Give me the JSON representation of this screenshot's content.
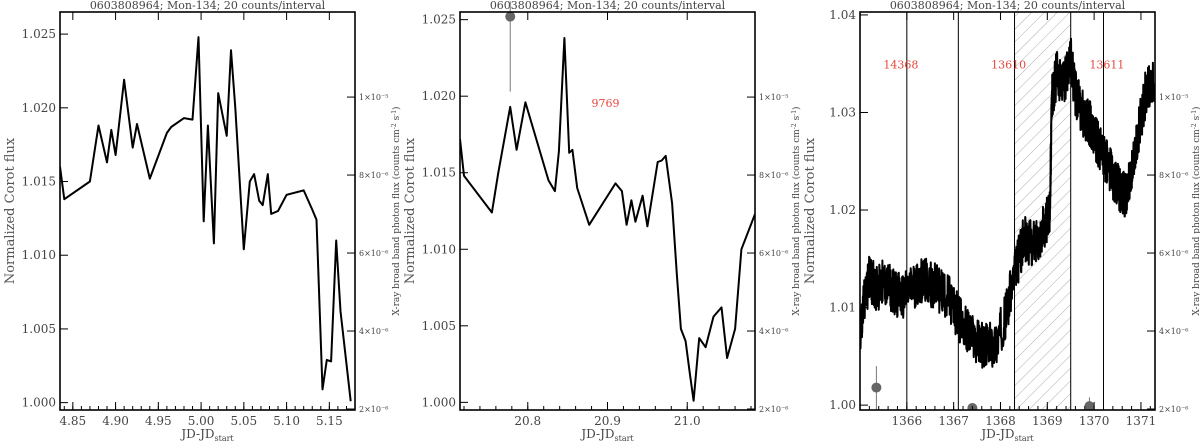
{
  "chart_data": [
    {
      "type": "line",
      "title": "0603808964; Mon-134; 20 counts/interval",
      "xlabel": "JD-JD",
      "xlabel_sub": "start",
      "ylabel": "Normalized Corot flux",
      "ylabel_right": "X-ray broad band photon flux (counts cm",
      "ylabel_right_parts": [
        "-2",
        " s",
        "-1",
        ")"
      ],
      "xlim": [
        4.835,
        5.18
      ],
      "ylim": [
        0.9995,
        1.0265
      ],
      "xticks": [
        "4.85",
        "4.90",
        "4.95",
        "5.00",
        "5.05",
        "5.10",
        "5.15"
      ],
      "xtick_values": [
        4.85,
        4.9,
        4.95,
        5.0,
        5.05,
        5.1,
        5.15
      ],
      "yticks": [
        "1.000",
        "1.005",
        "1.010",
        "1.015",
        "1.020",
        "1.025"
      ],
      "ytick_values": [
        1.0,
        1.005,
        1.01,
        1.015,
        1.02,
        1.025
      ],
      "yticks_right": [
        "2×10⁻⁶",
        "4×10⁻⁶",
        "6×10⁻⁶",
        "8×10⁻⁶",
        "1×10⁻⁵"
      ],
      "ytick_right_frac": [
        0.0,
        0.202,
        0.404,
        0.606,
        0.808
      ],
      "series": [
        {
          "x": [
            4.835,
            4.84,
            4.87,
            4.88,
            4.89,
            4.895,
            4.9,
            4.91,
            4.92,
            4.925,
            4.94,
            4.96,
            4.965,
            4.98,
            4.99,
            4.997,
            5.003,
            5.008,
            5.015,
            5.02,
            5.03,
            5.035,
            5.04,
            5.05,
            5.057,
            5.062,
            5.068,
            5.072,
            5.078,
            5.082,
            5.09,
            5.1,
            5.12,
            5.13,
            5.135,
            5.142,
            5.147,
            5.152,
            5.158,
            5.163,
            5.175
          ],
          "y": [
            1.016,
            1.0138,
            1.015,
            1.0188,
            1.0163,
            1.0185,
            1.0168,
            1.0219,
            1.0173,
            1.0189,
            1.0152,
            1.0183,
            1.0187,
            1.0193,
            1.0192,
            1.0248,
            1.0123,
            1.0188,
            1.0108,
            1.021,
            1.0181,
            1.0239,
            1.02,
            1.0104,
            1.015,
            1.0155,
            1.0137,
            1.0134,
            1.0155,
            1.0128,
            1.013,
            1.0141,
            1.0144,
            1.0131,
            1.0124,
            1.0009,
            1.0029,
            1.0028,
            1.011,
            1.0062,
            1.0001
          ]
        }
      ],
      "xray_points": [],
      "regions": [],
      "vlines": []
    },
    {
      "type": "line",
      "title": "0603808964; Mon-134; 20 counts/interval",
      "xlabel": "JD-JD",
      "xlabel_sub": "start",
      "ylabel": "Normalized Corot flux",
      "ylabel_right": "X-ray broad band photon flux (counts cm",
      "ylabel_right_parts": [
        "-2",
        " s",
        "-1",
        ")"
      ],
      "xlim": [
        20.715,
        21.085
      ],
      "ylim": [
        0.9995,
        1.0255
      ],
      "xticks": [
        "20.8",
        "20.9",
        "21.0"
      ],
      "xtick_values": [
        20.8,
        20.9,
        21.0
      ],
      "yticks": [
        "1.000",
        "1.005",
        "1.010",
        "1.015",
        "1.020",
        "1.025"
      ],
      "ytick_values": [
        1.0,
        1.005,
        1.01,
        1.015,
        1.02,
        1.025
      ],
      "yticks_right": [
        "2×10⁻⁶",
        "4×10⁻⁶",
        "6×10⁻⁶",
        "8×10⁻⁶",
        "1×10⁻⁵"
      ],
      "ytick_right_frac": [
        0.0,
        0.202,
        0.404,
        0.606,
        0.808
      ],
      "series": [
        {
          "x": [
            20.715,
            20.72,
            20.755,
            20.763,
            20.778,
            20.786,
            20.797,
            20.826,
            20.834,
            20.839,
            20.846,
            20.852,
            20.856,
            20.862,
            20.877,
            20.91,
            20.918,
            20.924,
            20.93,
            20.935,
            20.944,
            20.95,
            20.963,
            20.968,
            20.973,
            20.981,
            20.987,
            20.992,
            20.998,
            21.003,
            21.008,
            21.015,
            21.023,
            21.033,
            21.043,
            21.05,
            21.06,
            21.068,
            21.085
          ],
          "y": [
            1.0172,
            1.0148,
            1.0124,
            1.015,
            1.0193,
            1.0165,
            1.0196,
            1.0145,
            1.0138,
            1.0164,
            1.0238,
            1.0163,
            1.0165,
            1.014,
            1.0116,
            1.0143,
            1.0138,
            1.0116,
            1.0132,
            1.0118,
            1.0135,
            1.0115,
            1.0157,
            1.0158,
            1.0161,
            1.013,
            1.0083,
            1.0048,
            1.004,
            1.002,
            1.0001,
            1.0042,
            1.0036,
            1.0056,
            1.0062,
            1.0029,
            1.0048,
            1.01,
            1.0123
          ]
        }
      ],
      "xray_points": [
        {
          "x": 20.778,
          "y": 1.0252,
          "err_low": 1.0203,
          "err_high": 1.0262
        }
      ],
      "regions": [
        {
          "label": "9769",
          "x": 20.88,
          "y": 1.0193,
          "hatched": false
        }
      ],
      "vlines": []
    },
    {
      "type": "line",
      "title": "0603808964; Mon-134; 20 counts/interval",
      "xlabel": "JD-JD",
      "xlabel_sub": "start",
      "ylabel": "Normalized Corot flux",
      "ylabel_right": "X-ray broad band photon flux (counts cm",
      "ylabel_right_parts": [
        "-2",
        " s",
        "-1",
        ")"
      ],
      "xlim": [
        1365.0,
        1371.3
      ],
      "ylim": [
        0.9995,
        1.0403
      ],
      "xticks": [
        "1366",
        "1367",
        "1368",
        "1369",
        "1370",
        "1371"
      ],
      "xtick_values": [
        1366,
        1367,
        1368,
        1369,
        1370,
        1371
      ],
      "yticks": [
        "1.00",
        "1.01",
        "1.02",
        "1.03",
        "1.04"
      ],
      "ytick_values": [
        1.0,
        1.01,
        1.02,
        1.03,
        1.04
      ],
      "yticks_right": [
        "2×10⁻⁶",
        "4×10⁻⁶",
        "6×10⁻⁶",
        "8×10⁻⁶",
        "1×10⁻⁵"
      ],
      "ytick_right_frac": [
        0.0,
        0.202,
        0.404,
        0.606,
        0.808
      ],
      "series": [
        {
          "x": [
            1365.0,
            1365.1,
            1365.2,
            1365.35,
            1365.5,
            1365.7,
            1365.9,
            1366.1,
            1366.3,
            1366.5,
            1366.7,
            1366.9,
            1367.1,
            1367.3,
            1367.5,
            1367.7,
            1367.9,
            1368.1,
            1368.3,
            1368.5,
            1368.7,
            1368.9,
            1369.05,
            1369.1,
            1369.2,
            1369.35,
            1369.5,
            1369.6,
            1369.75,
            1369.9,
            1370.05,
            1370.2,
            1370.35,
            1370.5,
            1370.65,
            1370.8,
            1370.95,
            1371.1,
            1371.3
          ],
          "y": [
            1.007,
            1.011,
            1.013,
            1.012,
            1.0125,
            1.0118,
            1.011,
            1.012,
            1.0128,
            1.0125,
            1.0118,
            1.011,
            1.009,
            1.0075,
            1.0065,
            1.006,
            1.0062,
            1.009,
            1.0135,
            1.017,
            1.0165,
            1.018,
            1.0195,
            1.0315,
            1.034,
            1.033,
            1.0355,
            1.032,
            1.03,
            1.029,
            1.027,
            1.0255,
            1.024,
            1.0225,
            1.0215,
            1.0235,
            1.028,
            1.032,
            1.033
          ]
        }
      ],
      "noise_amplitude": 0.0024,
      "xray_points": [
        {
          "x": 1365.35,
          "y": 1.0018,
          "err_low": 0.9995,
          "err_high": 1.004
        },
        {
          "x": 1367.4,
          "y": 0.9997,
          "err_low": 0.9995,
          "err_high": 1.0002
        },
        {
          "x": 1369.9,
          "y": 0.9999,
          "err_low": 0.9995,
          "err_high": 1.0008
        }
      ],
      "vlines": [
        1366.0,
        1367.1,
        1368.3,
        1369.5,
        1370.2
      ],
      "regions": [
        {
          "label": "14368",
          "x": 1365.5,
          "y": 1.0345,
          "hatched": false
        },
        {
          "label": "13610",
          "x": 1367.8,
          "y": 1.0345,
          "hatched": false
        },
        {
          "label": "13611",
          "x": 1369.9,
          "y": 1.0345,
          "hatched": false
        },
        {
          "label": "",
          "x0": 1368.3,
          "x1": 1369.5,
          "hatched": true
        }
      ]
    }
  ]
}
